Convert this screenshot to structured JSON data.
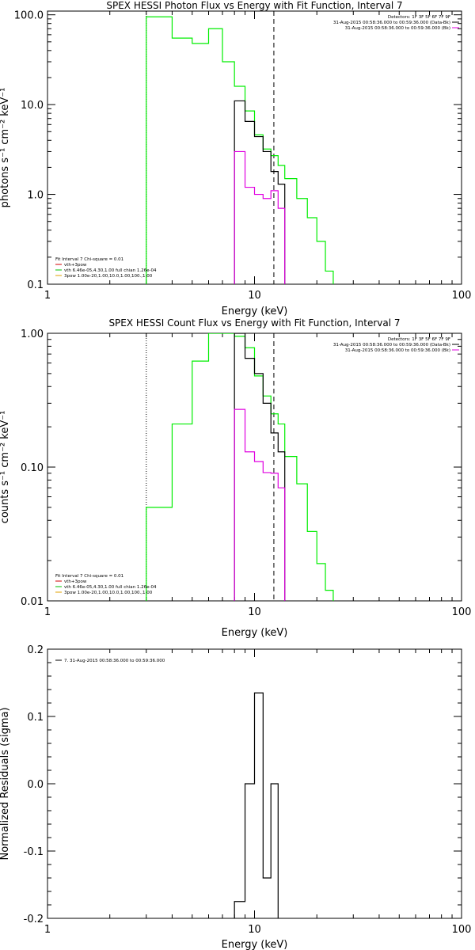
{
  "chart_data": [
    {
      "type": "line",
      "title": "SPEX HESSI Photon Flux vs Energy with Fit Function, Interval 7",
      "xlabel": "Energy (keV)",
      "ylabel": "photons s⁻¹ cm⁻² keV⁻¹",
      "xscale": "log",
      "yscale": "log",
      "xlim": [
        1,
        100
      ],
      "ylim": [
        0.1,
        110
      ],
      "xticks": [
        1,
        10,
        100
      ],
      "xtick_labels": [
        "1",
        "10",
        "100"
      ],
      "yticks": [
        0.1,
        1.0,
        10.0,
        100.0
      ],
      "ytick_labels": [
        "0.1",
        "1.0",
        "10.0",
        "100.0"
      ],
      "vlines": [
        {
          "x": 3.0,
          "style": "dotted",
          "color": "#000000"
        },
        {
          "x": 12.4,
          "style": "dashed",
          "color": "#000000"
        }
      ],
      "info_lines": [
        "Detectors: 1F 3F 5F 6F 7F 9F",
        "31-Aug-2015 00:58:36.000 to 00:59:36.000 (Data-Bk)",
        "31-Aug-2015 00:58:36.000 to 00:59:36.000 (Bk)"
      ],
      "info_colors": [
        "",
        "#000000",
        "#e000e0"
      ],
      "legend_header": "Fit Interval 7   Chi-square = 0.01",
      "legend": [
        {
          "label": "vth+3pow",
          "color": "#d00000"
        },
        {
          "label": "vth 6.46e-05,4.30,1.00  full chian 1.26e-04",
          "color": "#00c000"
        },
        {
          "label": "3pow 1.00e-20,1.00,10.0,1.00,100.,1.00",
          "color": "#e0a000"
        }
      ],
      "series": [
        {
          "color": "#00ee00",
          "style": "step",
          "points": [
            [
              3,
              0.1
            ],
            [
              3,
              95
            ],
            [
              4,
              95
            ],
            [
              4,
              55
            ],
            [
              5,
              55
            ],
            [
              5,
              48
            ],
            [
              6,
              48
            ],
            [
              6,
              70
            ],
            [
              7,
              70
            ],
            [
              7,
              30
            ],
            [
              8,
              30
            ],
            [
              8,
              16
            ],
            [
              9,
              16
            ],
            [
              9,
              8.5
            ],
            [
              10,
              8.5
            ],
            [
              10,
              4.6
            ],
            [
              11,
              4.6
            ],
            [
              11,
              3.2
            ],
            [
              12,
              3.2
            ],
            [
              12,
              2.7
            ],
            [
              13,
              2.7
            ],
            [
              13,
              2.1
            ],
            [
              14,
              2.1
            ],
            [
              14,
              1.5
            ],
            [
              16,
              1.5
            ],
            [
              16,
              0.9
            ],
            [
              18,
              0.9
            ],
            [
              18,
              0.55
            ],
            [
              20,
              0.55
            ],
            [
              20,
              0.3
            ],
            [
              22,
              0.3
            ],
            [
              22,
              0.14
            ],
            [
              24,
              0.14
            ],
            [
              24,
              0.1
            ]
          ]
        },
        {
          "color": "#000000",
          "style": "step",
          "points": [
            [
              8,
              0.1
            ],
            [
              8,
              11
            ],
            [
              9,
              11
            ],
            [
              9,
              6.5
            ],
            [
              10,
              6.5
            ],
            [
              10,
              4.4
            ],
            [
              11,
              4.4
            ],
            [
              11,
              3.0
            ],
            [
              12,
              3.0
            ],
            [
              12,
              1.8
            ],
            [
              13,
              1.8
            ],
            [
              13,
              1.3
            ],
            [
              14,
              1.3
            ],
            [
              14,
              0.1
            ]
          ]
        },
        {
          "color": "#e000e0",
          "style": "step",
          "points": [
            [
              8,
              0.1
            ],
            [
              8,
              3.0
            ],
            [
              9,
              3.0
            ],
            [
              9,
              1.2
            ],
            [
              10,
              1.2
            ],
            [
              10,
              1.0
            ],
            [
              11,
              1.0
            ],
            [
              11,
              0.9
            ],
            [
              12,
              0.9
            ],
            [
              12,
              1.1
            ],
            [
              13,
              1.1
            ],
            [
              13,
              0.7
            ],
            [
              14,
              0.7
            ],
            [
              14,
              0.1
            ]
          ]
        }
      ]
    },
    {
      "type": "line",
      "title": "SPEX HESSI Count Flux vs Energy with Fit Function, Interval 7",
      "xlabel": "Energy (keV)",
      "ylabel": "counts s⁻¹ cm⁻² keV⁻¹",
      "xscale": "log",
      "yscale": "log",
      "xlim": [
        1,
        100
      ],
      "ylim": [
        0.01,
        1.0
      ],
      "xticks": [
        1,
        10,
        100
      ],
      "xtick_labels": [
        "1",
        "10",
        "100"
      ],
      "yticks": [
        0.01,
        0.1,
        1.0
      ],
      "ytick_labels": [
        "0.01",
        "0.10",
        "1.00"
      ],
      "vlines": [
        {
          "x": 3.0,
          "style": "dotted",
          "color": "#000000"
        },
        {
          "x": 12.4,
          "style": "dashed",
          "color": "#000000"
        }
      ],
      "info_lines": [
        "Detectors: 1F 3F 5F 6F 7F 9F",
        "31-Aug-2015 00:58:36.000 to 00:59:36.000 (Data-Bk)",
        "31-Aug-2015 00:58:36.000 to 00:59:36.000 (Bk)"
      ],
      "info_colors": [
        "",
        "#000000",
        "#e000e0"
      ],
      "legend_header": "Fit Interval 7   Chi-square = 0.01",
      "legend": [
        {
          "label": "vth+3pow",
          "color": "#d00000"
        },
        {
          "label": "vth 6.46e-05,4.30,1.00  full chian 1.26e-04",
          "color": "#00c000"
        },
        {
          "label": "3pow 1.00e-20,1.00,10.0,1.00,100.,1.00",
          "color": "#e0a000"
        }
      ],
      "series": [
        {
          "color": "#00ee00",
          "style": "step",
          "points": [
            [
              3,
              0.01
            ],
            [
              3,
              0.05
            ],
            [
              4,
              0.05
            ],
            [
              4,
              0.21
            ],
            [
              5,
              0.21
            ],
            [
              5,
              0.62
            ],
            [
              6,
              0.62
            ],
            [
              6,
              1.0
            ],
            [
              7,
              1.0
            ],
            [
              7,
              1.0
            ],
            [
              8,
              1.0
            ],
            [
              8,
              0.95
            ],
            [
              9,
              0.95
            ],
            [
              9,
              0.78
            ],
            [
              10,
              0.78
            ],
            [
              10,
              0.48
            ],
            [
              11,
              0.48
            ],
            [
              11,
              0.34
            ],
            [
              12,
              0.34
            ],
            [
              12,
              0.25
            ],
            [
              13,
              0.25
            ],
            [
              13,
              0.21
            ],
            [
              14,
              0.21
            ],
            [
              14,
              0.12
            ],
            [
              16,
              0.12
            ],
            [
              16,
              0.075
            ],
            [
              18,
              0.075
            ],
            [
              18,
              0.033
            ],
            [
              20,
              0.033
            ],
            [
              20,
              0.019
            ],
            [
              22,
              0.019
            ],
            [
              22,
              0.012
            ],
            [
              24,
              0.012
            ],
            [
              24,
              0.01
            ]
          ]
        },
        {
          "color": "#000000",
          "style": "step",
          "points": [
            [
              8,
              0.01
            ],
            [
              8,
              1.0
            ],
            [
              9,
              1.0
            ],
            [
              9,
              0.65
            ],
            [
              10,
              0.65
            ],
            [
              10,
              0.5
            ],
            [
              11,
              0.5
            ],
            [
              11,
              0.3
            ],
            [
              12,
              0.3
            ],
            [
              12,
              0.18
            ],
            [
              13,
              0.18
            ],
            [
              13,
              0.13
            ],
            [
              14,
              0.13
            ],
            [
              14,
              0.01
            ]
          ]
        },
        {
          "color": "#e000e0",
          "style": "step",
          "points": [
            [
              8,
              0.01
            ],
            [
              8,
              0.27
            ],
            [
              9,
              0.27
            ],
            [
              9,
              0.13
            ],
            [
              10,
              0.13
            ],
            [
              10,
              0.11
            ],
            [
              11,
              0.11
            ],
            [
              11,
              0.091
            ],
            [
              12,
              0.091
            ],
            [
              12,
              0.09
            ],
            [
              13,
              0.09
            ],
            [
              13,
              0.07
            ],
            [
              14,
              0.07
            ],
            [
              14,
              0.01
            ]
          ]
        }
      ]
    },
    {
      "type": "line",
      "title": "",
      "xlabel": "Energy (keV)",
      "ylabel": "Normalized Residuals (sigma)",
      "xscale": "log",
      "yscale": "linear",
      "xlim": [
        1,
        100
      ],
      "ylim": [
        -0.2,
        0.2
      ],
      "xticks": [
        1,
        10,
        100
      ],
      "xtick_labels": [
        "1",
        "10",
        "100"
      ],
      "yticks": [
        -0.2,
        -0.1,
        0.0,
        0.1,
        0.2
      ],
      "ytick_labels": [
        "-0.2",
        "-0.1",
        "0.0",
        "0.1",
        "0.2"
      ],
      "vlines": [],
      "info_lines": [],
      "legend_header": "",
      "legend": [
        {
          "label": "7. 31-Aug-2015 00:58:36.000 to 00:59:36.000",
          "color": "#000000"
        }
      ],
      "series": [
        {
          "color": "#000000",
          "style": "step",
          "points": [
            [
              8,
              -0.2
            ],
            [
              8,
              -0.175
            ],
            [
              9,
              -0.175
            ],
            [
              9,
              0.0
            ],
            [
              10,
              0.0
            ],
            [
              10,
              0.135
            ],
            [
              11,
              0.135
            ],
            [
              11,
              -0.14
            ],
            [
              12,
              -0.14
            ],
            [
              12,
              0.0
            ],
            [
              13,
              0.0
            ],
            [
              13,
              -0.2
            ]
          ]
        }
      ]
    }
  ]
}
